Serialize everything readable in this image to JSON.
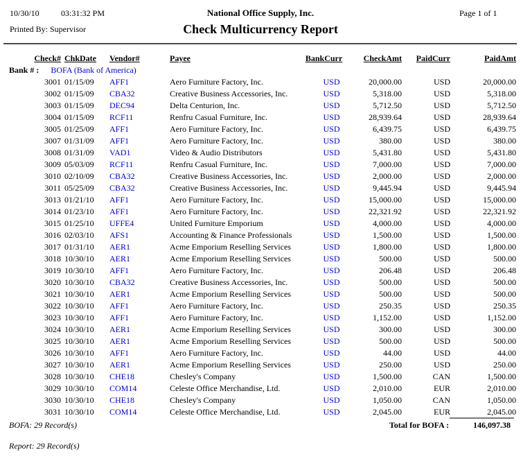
{
  "header": {
    "date": "10/30/10",
    "time": "03:31:32 PM",
    "company": "National Office Supply, Inc.",
    "page": "Page 1 of 1",
    "printed_by": "Printed By: Supervisor",
    "title": "Check Multicurrency Report"
  },
  "columns": [
    "Check#",
    "ChkDate",
    "Vendor#",
    "Payee",
    "BankCurr",
    "CheckAmt",
    "PaidCurr",
    "PaidAmt"
  ],
  "bank": {
    "label": "Bank # :",
    "value": "BOFA (Bank of America)"
  },
  "rows": [
    {
      "check": "3001",
      "date": "01/15/09",
      "vendor": "AFF1",
      "payee": "Aero Furniture Factory, Inc.",
      "bank_curr": "USD",
      "check_amt": "20,000.00",
      "paid_curr": "USD",
      "paid_amt": "20,000.00"
    },
    {
      "check": "3002",
      "date": "01/15/09",
      "vendor": "CBA32",
      "payee": "Creative Business Accessories, Inc.",
      "bank_curr": "USD",
      "check_amt": "5,318.00",
      "paid_curr": "USD",
      "paid_amt": "5,318.00"
    },
    {
      "check": "3003",
      "date": "01/15/09",
      "vendor": "DEC94",
      "payee": "Delta Centurion, Inc.",
      "bank_curr": "USD",
      "check_amt": "5,712.50",
      "paid_curr": "USD",
      "paid_amt": "5,712.50"
    },
    {
      "check": "3004",
      "date": "01/15/09",
      "vendor": "RCF11",
      "payee": "Renfru Casual Furniture, Inc.",
      "bank_curr": "USD",
      "check_amt": "28,939.64",
      "paid_curr": "USD",
      "paid_amt": "28,939.64"
    },
    {
      "check": "3005",
      "date": "01/25/09",
      "vendor": "AFF1",
      "payee": "Aero Furniture Factory, Inc.",
      "bank_curr": "USD",
      "check_amt": "6,439.75",
      "paid_curr": "USD",
      "paid_amt": "6,439.75"
    },
    {
      "check": "3007",
      "date": "01/31/09",
      "vendor": "AFF1",
      "payee": "Aero Furniture Factory, Inc.",
      "bank_curr": "USD",
      "check_amt": "380.00",
      "paid_curr": "USD",
      "paid_amt": "380.00"
    },
    {
      "check": "3008",
      "date": "01/31/09",
      "vendor": "VAD1",
      "payee": "Video & Audio Distributors",
      "bank_curr": "USD",
      "check_amt": "5,431.80",
      "paid_curr": "USD",
      "paid_amt": "5,431.80"
    },
    {
      "check": "3009",
      "date": "05/03/09",
      "vendor": "RCF11",
      "payee": "Renfru Casual Furniture, Inc.",
      "bank_curr": "USD",
      "check_amt": "7,000.00",
      "paid_curr": "USD",
      "paid_amt": "7,000.00"
    },
    {
      "check": "3010",
      "date": "02/10/09",
      "vendor": "CBA32",
      "payee": "Creative Business Accessories, Inc.",
      "bank_curr": "USD",
      "check_amt": "2,000.00",
      "paid_curr": "USD",
      "paid_amt": "2,000.00"
    },
    {
      "check": "3011",
      "date": "05/25/09",
      "vendor": "CBA32",
      "payee": "Creative Business Accessories, Inc.",
      "bank_curr": "USD",
      "check_amt": "9,445.94",
      "paid_curr": "USD",
      "paid_amt": "9,445.94"
    },
    {
      "check": "3013",
      "date": "01/21/10",
      "vendor": "AFF1",
      "payee": "Aero Furniture Factory, Inc.",
      "bank_curr": "USD",
      "check_amt": "15,000.00",
      "paid_curr": "USD",
      "paid_amt": "15,000.00"
    },
    {
      "check": "3014",
      "date": "01/23/10",
      "vendor": "AFF1",
      "payee": "Aero Furniture Factory, Inc.",
      "bank_curr": "USD",
      "check_amt": "22,321.92",
      "paid_curr": "USD",
      "paid_amt": "22,321.92"
    },
    {
      "check": "3015",
      "date": "01/25/10",
      "vendor": "UFFE4",
      "payee": "United Furniture Emporium",
      "bank_curr": "USD",
      "check_amt": "4,000.00",
      "paid_curr": "USD",
      "paid_amt": "4,000.00"
    },
    {
      "check": "3016",
      "date": "02/03/10",
      "vendor": "AFS1",
      "payee": "Accounting & Finance Professionals",
      "bank_curr": "USD",
      "check_amt": "1,500.00",
      "paid_curr": "USD",
      "paid_amt": "1,500.00"
    },
    {
      "check": "3017",
      "date": "01/31/10",
      "vendor": "AER1",
      "payee": "Acme Emporium Reselling Services",
      "bank_curr": "USD",
      "check_amt": "1,800.00",
      "paid_curr": "USD",
      "paid_amt": "1,800.00"
    },
    {
      "check": "3018",
      "date": "10/30/10",
      "vendor": "AER1",
      "payee": "Acme Emporium Reselling Services",
      "bank_curr": "USD",
      "check_amt": "500.00",
      "paid_curr": "USD",
      "paid_amt": "500.00"
    },
    {
      "check": "3019",
      "date": "10/30/10",
      "vendor": "AFF1",
      "payee": "Aero Furniture Factory, Inc.",
      "bank_curr": "USD",
      "check_amt": "206.48",
      "paid_curr": "USD",
      "paid_amt": "206.48"
    },
    {
      "check": "3020",
      "date": "10/30/10",
      "vendor": "CBA32",
      "payee": "Creative Business Accessories, Inc.",
      "bank_curr": "USD",
      "check_amt": "500.00",
      "paid_curr": "USD",
      "paid_amt": "500.00"
    },
    {
      "check": "3021",
      "date": "10/30/10",
      "vendor": "AER1",
      "payee": "Acme Emporium Reselling Services",
      "bank_curr": "USD",
      "check_amt": "500.00",
      "paid_curr": "USD",
      "paid_amt": "500.00"
    },
    {
      "check": "3022",
      "date": "10/30/10",
      "vendor": "AFF1",
      "payee": "Aero Furniture Factory, Inc.",
      "bank_curr": "USD",
      "check_amt": "250.35",
      "paid_curr": "USD",
      "paid_amt": "250.35"
    },
    {
      "check": "3023",
      "date": "10/30/10",
      "vendor": "AFF1",
      "payee": "Aero Furniture Factory, Inc.",
      "bank_curr": "USD",
      "check_amt": "1,152.00",
      "paid_curr": "USD",
      "paid_amt": "1,152.00"
    },
    {
      "check": "3024",
      "date": "10/30/10",
      "vendor": "AER1",
      "payee": "Acme Emporium Reselling Services",
      "bank_curr": "USD",
      "check_amt": "300.00",
      "paid_curr": "USD",
      "paid_amt": "300.00"
    },
    {
      "check": "3025",
      "date": "10/30/10",
      "vendor": "AER1",
      "payee": "Acme Emporium Reselling Services",
      "bank_curr": "USD",
      "check_amt": "500.00",
      "paid_curr": "USD",
      "paid_amt": "500.00"
    },
    {
      "check": "3026",
      "date": "10/30/10",
      "vendor": "AFF1",
      "payee": "Aero Furniture Factory, Inc.",
      "bank_curr": "USD",
      "check_amt": "44.00",
      "paid_curr": "USD",
      "paid_amt": "44.00"
    },
    {
      "check": "3027",
      "date": "10/30/10",
      "vendor": "AER1",
      "payee": "Acme Emporium Reselling Services",
      "bank_curr": "USD",
      "check_amt": "250.00",
      "paid_curr": "USD",
      "paid_amt": "250.00"
    },
    {
      "check": "3028",
      "date": "10/30/10",
      "vendor": "CHE18",
      "payee": "Chesley's Company",
      "bank_curr": "USD",
      "check_amt": "1,500.00",
      "paid_curr": "CAN",
      "paid_amt": "1,500.00"
    },
    {
      "check": "3029",
      "date": "10/30/10",
      "vendor": "COM14",
      "payee": "Celeste Office Merchandise, Ltd.",
      "bank_curr": "USD",
      "check_amt": "2,010.00",
      "paid_curr": "EUR",
      "paid_amt": "2,010.00"
    },
    {
      "check": "3030",
      "date": "10/30/10",
      "vendor": "CHE18",
      "payee": "Chesley's Company",
      "bank_curr": "USD",
      "check_amt": "1,050.00",
      "paid_curr": "CAN",
      "paid_amt": "1,050.00"
    },
    {
      "check": "3031",
      "date": "10/30/10",
      "vendor": "COM14",
      "payee": "Celeste Office Merchandise, Ltd.",
      "bank_curr": "USD",
      "check_amt": "2,045.00",
      "paid_curr": "EUR",
      "paid_amt": "2,045.00"
    }
  ],
  "summary": {
    "bank_records": "BOFA: 29 Record(s)",
    "total_label": "Total for BOFA :",
    "total_amount": "146,097.38",
    "report_records": "Report: 29 Record(s)"
  },
  "colors": {
    "link_blue": "#0000CC",
    "rule_gray": "#4a4a4a"
  }
}
